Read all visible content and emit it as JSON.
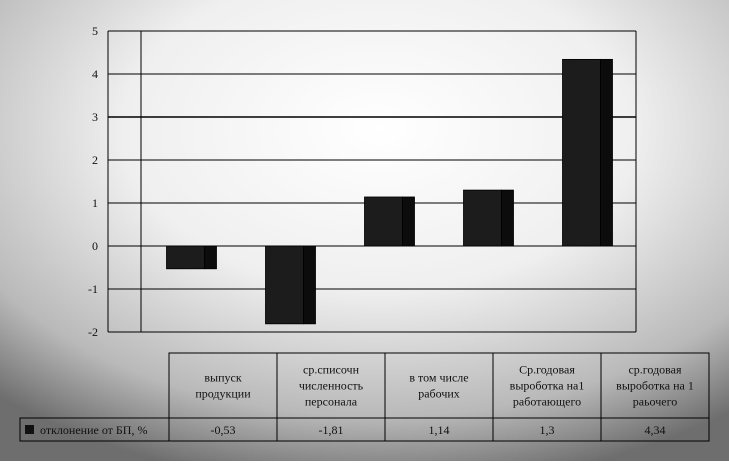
{
  "chart_data": {
    "type": "bar",
    "categories": [
      [
        "выпуск",
        "продукции"
      ],
      [
        "ср.списочн",
        "численность",
        "персонала"
      ],
      [
        "в том числе",
        "рабочих"
      ],
      [
        "Ср.годовая",
        "выроботка на1",
        "работающего"
      ],
      [
        "ср.годовая",
        "выроботка на 1",
        "раьочего"
      ]
    ],
    "series": [
      {
        "name": "отклонение от БП, %",
        "values": [
          -0.53,
          -1.81,
          1.14,
          1.3,
          4.34
        ],
        "value_labels": [
          "-0,53",
          "-1,81",
          "1,14",
          "1,3",
          "4,34"
        ]
      }
    ],
    "ylim": [
      -2,
      5
    ],
    "y_ticks": [
      5,
      4,
      3,
      2,
      1,
      0,
      -1,
      -2
    ],
    "grid": true,
    "legend": "data-table-left",
    "colors": {
      "bar": "#1c1c1c",
      "bar_side": "#0c0c0c",
      "grid": "#000000"
    }
  }
}
